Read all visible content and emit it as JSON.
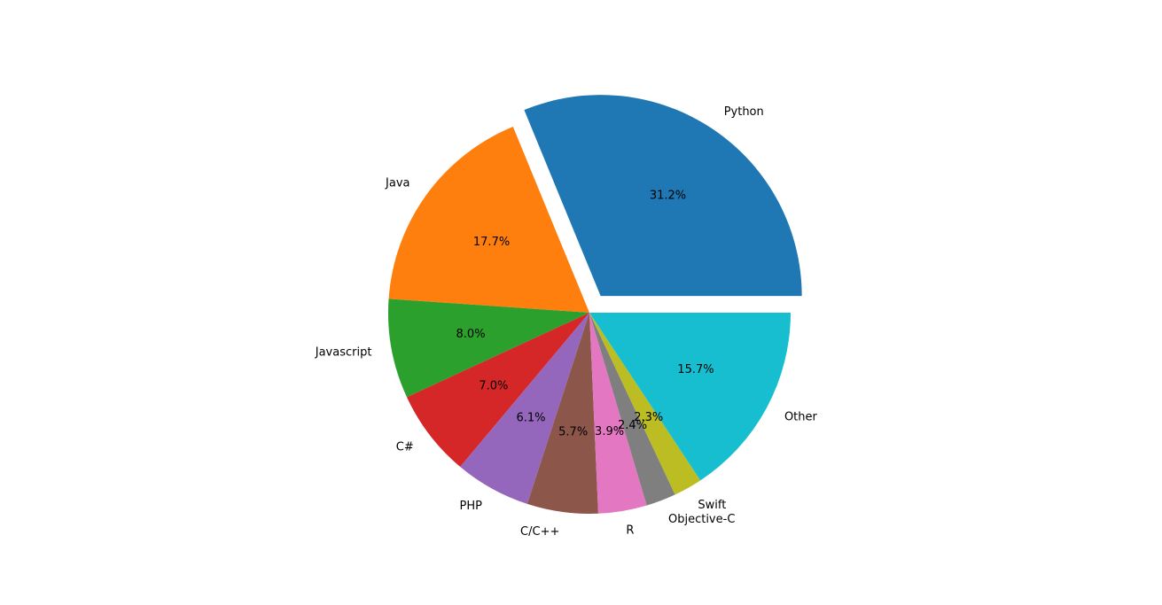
{
  "chart_data": {
    "type": "pie",
    "categories": [
      "Python",
      "Java",
      "Javascript",
      "C#",
      "PHP",
      "C/C++",
      "R",
      "Objective-C",
      "Swift",
      "Other"
    ],
    "values": [
      31.2,
      17.7,
      8.0,
      7.0,
      6.1,
      5.7,
      3.9,
      2.4,
      2.3,
      15.7
    ],
    "value_labels": [
      "31.2%",
      "17.7%",
      "8.0%",
      "7.0%",
      "6.1%",
      "5.7%",
      "3.9%",
      "2.4%",
      "2.3%",
      "15.7%"
    ],
    "colors": [
      "#1f77b4",
      "#ff7f0e",
      "#2ca02c",
      "#d62728",
      "#9467bd",
      "#8c564b",
      "#e377c2",
      "#7f7f7f",
      "#bcbd22",
      "#17becf"
    ],
    "explode": [
      0.1,
      0,
      0,
      0,
      0,
      0,
      0,
      0,
      0,
      0
    ]
  }
}
